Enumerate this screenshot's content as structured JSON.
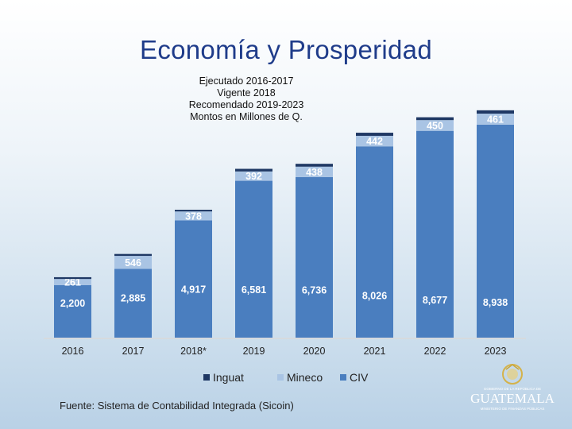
{
  "title": "Economía y Prosperidad",
  "subtitle": {
    "line1": "Ejecutado 2016-2017",
    "line2": "Vigente 2018",
    "line3": "Recomendado 2019-2023",
    "line4": "Montos en Millones de Q."
  },
  "source": "Fuente: Sistema de Contabilidad Integrada (Sicoin)",
  "logo": {
    "small_text": "GOBIERNO DE LA REPÚBLICA DE",
    "name": "GUATEMALA",
    "ministry": "MINISTERIO DE FINANZAS PÚBLICAS"
  },
  "colors": {
    "Inguat": "#1f3864",
    "Mineco": "#a9c4e4",
    "CIV": "#4a7ebf"
  },
  "chart_data": {
    "type": "bar",
    "stacked": true,
    "categories": [
      "2016",
      "2017",
      "2018*",
      "2019",
      "2020",
      "2021",
      "2022",
      "2023"
    ],
    "series": [
      {
        "name": "CIV",
        "values": [
          2200,
          2885,
          4917,
          6581,
          6736,
          8026,
          8677,
          8938
        ]
      },
      {
        "name": "Mineco",
        "values": [
          261,
          546,
          378,
          392,
          438,
          442,
          450,
          461
        ]
      },
      {
        "name": "Inguat",
        "values": [
          75,
          80,
          70,
          110,
          120,
          130,
          120,
          140
        ]
      }
    ],
    "labeled_series": [
      "CIV",
      "Mineco"
    ],
    "legend": {
      "position": "bottom",
      "order": [
        "Inguat",
        "Mineco",
        "CIV"
      ]
    },
    "ylim": [
      0,
      10000
    ],
    "grid": false,
    "xlabel": "",
    "ylabel": ""
  }
}
